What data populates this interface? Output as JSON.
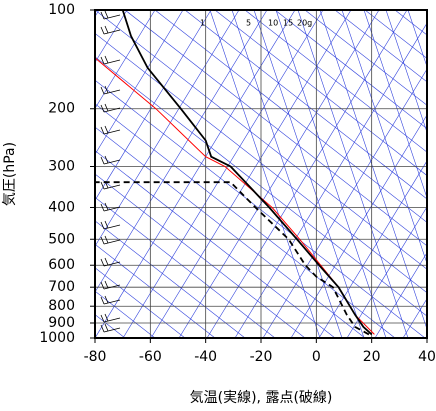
{
  "chart_data": {
    "type": "sounding",
    "xlabel": "気温(実線), 露点(破線)",
    "ylabel": "気圧(hPa)",
    "xlim": [
      -80,
      40
    ],
    "xticks": [
      -80,
      -60,
      -40,
      -20,
      0,
      20,
      40
    ],
    "ylim": [
      100,
      1000
    ],
    "ylog": true,
    "yticks": [
      100,
      200,
      300,
      400,
      500,
      600,
      700,
      800,
      900,
      1000
    ],
    "grid": true,
    "mixing_ratio_labels": [
      "1",
      "5",
      "10",
      "15",
      "20g"
    ],
    "series": [
      {
        "color": "#ff0000",
        "dash": false,
        "pressure": [
          975,
          850,
          700,
          500,
          400,
          300,
          280,
          200,
          140
        ],
        "values": [
          21,
          14,
          8,
          -6,
          -16,
          -33,
          -40,
          -58,
          -80
        ]
      },
      {
        "color": "#000000",
        "dash": false,
        "pressure": [
          975,
          925,
          850,
          700,
          600,
          500,
          400,
          300,
          280,
          250,
          200,
          150,
          120,
          100
        ],
        "values": [
          20,
          17,
          14,
          8,
          1,
          -7,
          -17,
          -31,
          -38,
          -40,
          -49,
          -61,
          -67,
          -70
        ]
      },
      {
        "color": "#000000",
        "dash": true,
        "pressure": [
          975,
          925,
          850,
          700,
          650,
          600,
          500,
          400,
          335,
          335
        ],
        "values": [
          19,
          14,
          11,
          6,
          0,
          -4,
          -10,
          -22,
          -31,
          -80
        ]
      }
    ]
  }
}
